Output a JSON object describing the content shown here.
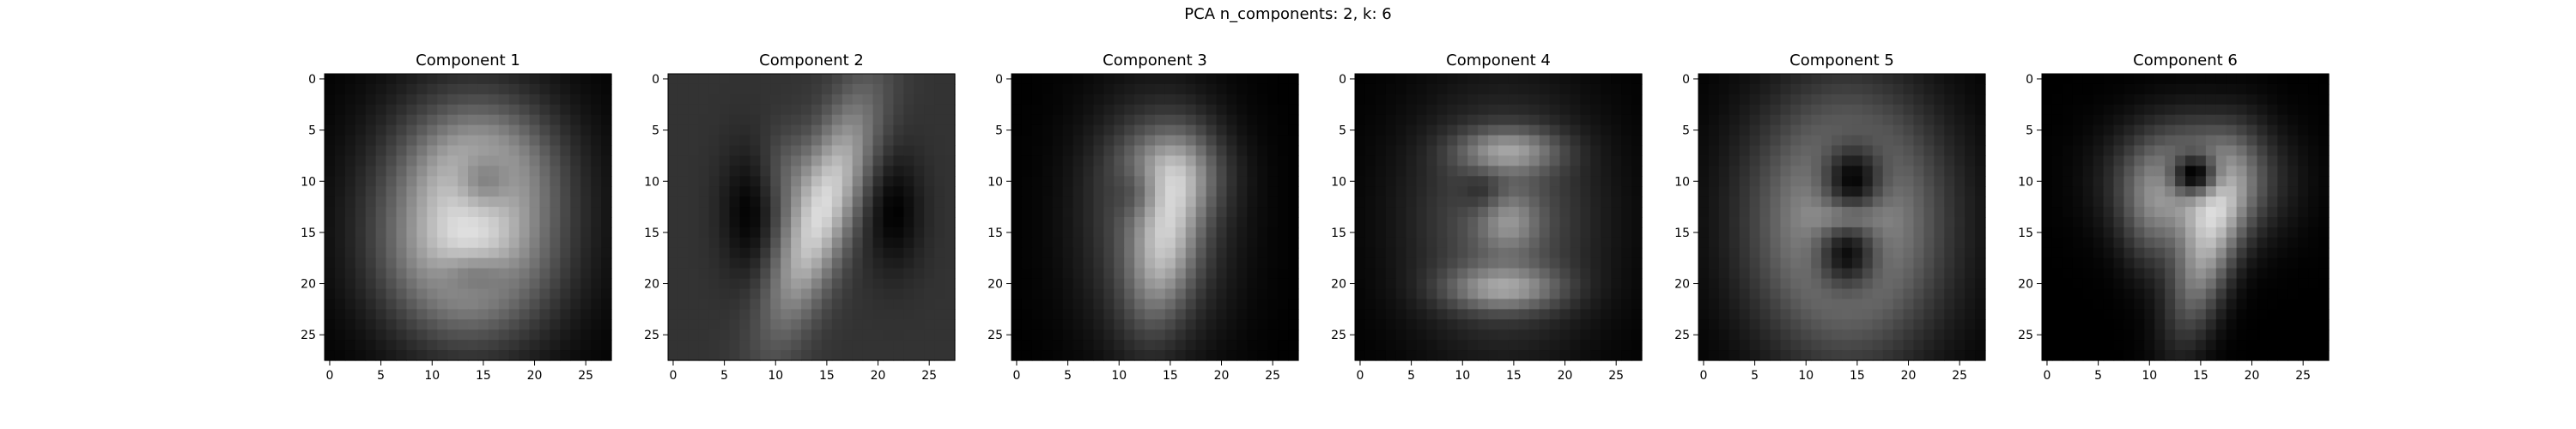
{
  "figure": {
    "suptitle": "PCA n_components: 2, k: 6"
  },
  "chart_data": {
    "type": "heatmap",
    "colormap": "gray",
    "grid": false,
    "image_shape": [
      28,
      28
    ],
    "xlim": [
      -0.5,
      27.5
    ],
    "ylim": [
      27.5,
      -0.5
    ],
    "xticks": [
      0,
      5,
      10,
      15,
      20,
      25
    ],
    "yticks": [
      0,
      5,
      10,
      15,
      20,
      25
    ],
    "panels": [
      {
        "title": "Component 1",
        "background": 0.0,
        "blobs": [
          {
            "cx": 14,
            "cy": 13,
            "rx": 6.5,
            "ry": 8.5,
            "a": 0.55
          },
          {
            "cx": 13,
            "cy": 17,
            "rx": 5.5,
            "ry": 5.5,
            "a": 0.35
          },
          {
            "cx": 15,
            "cy": 8,
            "rx": 4.5,
            "ry": 3.5,
            "a": 0.25
          },
          {
            "cx": 15,
            "cy": 10,
            "rx": 2.0,
            "ry": 2.0,
            "a": -0.35
          },
          {
            "cx": 14,
            "cy": 19,
            "rx": 2.5,
            "ry": 1.5,
            "a": -0.25
          }
        ]
      },
      {
        "title": "Component 2",
        "background": 0.2,
        "blobs": [
          {
            "cx": 14.5,
            "cy": 13,
            "rx": 2.2,
            "ry": 8.0,
            "a": 0.65,
            "rot": 20
          },
          {
            "cx": 7.5,
            "cy": 13,
            "rx": 2.0,
            "ry": 4.5,
            "a": -0.2
          },
          {
            "cx": 21.5,
            "cy": 13,
            "rx": 2.0,
            "ry": 4.0,
            "a": -0.2
          },
          {
            "cx": 11,
            "cy": 9,
            "rx": 2.0,
            "ry": 3.0,
            "a": 0.15
          }
        ]
      },
      {
        "title": "Component 3",
        "background": 0.0,
        "blobs": [
          {
            "cx": 13.5,
            "cy": 14,
            "rx": 5.0,
            "ry": 8.5,
            "a": 0.35
          },
          {
            "cx": 15,
            "cy": 9,
            "rx": 3.5,
            "ry": 3.0,
            "a": 0.35
          },
          {
            "cx": 14.5,
            "cy": 16,
            "rx": 2.2,
            "ry": 5.5,
            "a": 0.45,
            "rot": 10
          },
          {
            "cx": 12,
            "cy": 11,
            "rx": 1.8,
            "ry": 1.8,
            "a": -0.2
          }
        ]
      },
      {
        "title": "Component 4",
        "background": 0.0,
        "blobs": [
          {
            "cx": 14,
            "cy": 14,
            "rx": 6.5,
            "ry": 8.5,
            "a": 0.35
          },
          {
            "cx": 14.5,
            "cy": 7,
            "rx": 3.5,
            "ry": 1.5,
            "a": 0.4
          },
          {
            "cx": 14,
            "cy": 20.5,
            "rx": 4.0,
            "ry": 1.5,
            "a": 0.4
          },
          {
            "cx": 14.5,
            "cy": 14,
            "rx": 2.0,
            "ry": 2.0,
            "a": 0.25
          },
          {
            "cx": 12,
            "cy": 11,
            "rx": 1.5,
            "ry": 1.5,
            "a": -0.15
          }
        ]
      },
      {
        "title": "Component 5",
        "background": 0.0,
        "blobs": [
          {
            "cx": 14,
            "cy": 14,
            "rx": 6.5,
            "ry": 9.0,
            "a": 0.7
          },
          {
            "cx": 14.5,
            "cy": 10,
            "rx": 2.2,
            "ry": 2.5,
            "a": -0.6
          },
          {
            "cx": 14.0,
            "cy": 17,
            "rx": 2.2,
            "ry": 2.5,
            "a": -0.6
          },
          {
            "cx": 14,
            "cy": 13.5,
            "rx": 2.0,
            "ry": 1.0,
            "a": 0.2
          }
        ]
      },
      {
        "title": "Component 6",
        "background": 0.0,
        "blobs": [
          {
            "cx": 14.5,
            "cy": 10,
            "rx": 5.0,
            "ry": 4.0,
            "a": 0.65
          },
          {
            "cx": 14.5,
            "cy": 9.5,
            "rx": 1.7,
            "ry": 1.5,
            "a": -0.75
          },
          {
            "cx": 15.5,
            "cy": 17,
            "rx": 2.0,
            "ry": 6.0,
            "a": 0.55,
            "rot": 15
          },
          {
            "cx": 10,
            "cy": 14,
            "rx": 2.0,
            "ry": 4.0,
            "a": 0.2
          }
        ]
      }
    ]
  }
}
